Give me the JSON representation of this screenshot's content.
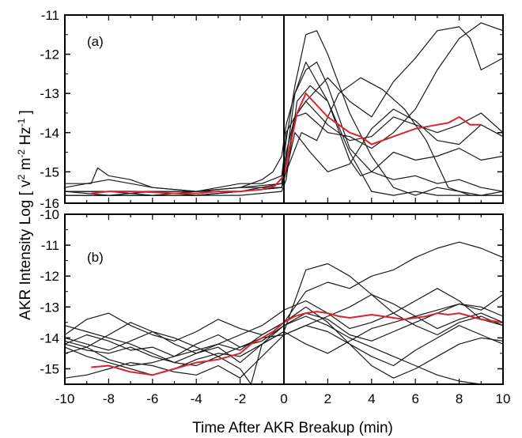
{
  "chart_data": {
    "type": "line",
    "shared_ylabel": "AKR Intensity  Log [ v",
    "ylabel_parts": {
      "prefix": "AKR Intensity  Log [ v",
      "sup1": "2",
      "mid1": " m",
      "sup2": "-2",
      "mid2": " Hz",
      "sup3": "-1",
      "suffix": " ]"
    },
    "xlabel": "Time After AKR Breakup (min)",
    "xlim": [
      -10,
      10
    ],
    "xticks": [
      -10,
      -8,
      -6,
      -4,
      -2,
      0,
      2,
      4,
      6,
      8,
      10
    ],
    "xtick_labels": [
      "-10",
      "-8",
      "-6",
      "-4",
      "-2",
      "0",
      "2",
      "4",
      "6",
      "8",
      "10"
    ],
    "colors": {
      "events": "#1a1a1a",
      "average": "#d9232e"
    },
    "panels": [
      {
        "label": "(a)",
        "ylim": [
          -15.8,
          -11
        ],
        "yticks": [
          -11,
          -12,
          -13,
          -14,
          -15
        ],
        "ytick_labels": [
          "-11",
          "-12",
          "-13",
          "-14",
          "-15"
        ],
        "lower_tick_label": "-16",
        "events": [
          {
            "x": [
              -10,
              -8,
              -6,
              -4,
              -2,
              -1,
              -0.5,
              -0.1,
              0.1,
              0.5,
              1,
              1.5,
              2,
              2.5,
              3,
              4,
              5,
              6,
              7,
              8,
              9,
              10
            ],
            "y": [
              -15.5,
              -15.5,
              -15.5,
              -15.5,
              -15.4,
              -15.2,
              -15,
              -14.6,
              -13.8,
              -13,
              -12.4,
              -12.2,
              -12.8,
              -13.6,
              -14.4,
              -15,
              -15.2,
              -15.1,
              -15.3,
              -15.2,
              -15.4,
              -15.5
            ]
          },
          {
            "x": [
              -10,
              -8,
              -6,
              -4,
              -2,
              -1,
              -0.1,
              0.1,
              0.5,
              1,
              1.5,
              2,
              3,
              4,
              5,
              6,
              7,
              8,
              9,
              10
            ],
            "y": [
              -15.4,
              -15.2,
              -15.4,
              -15.5,
              -15.3,
              -15.3,
              -15.1,
              -14.2,
              -12.8,
              -11.5,
              -11.4,
              -12,
              -13.5,
              -14.6,
              -15.4,
              -15.6,
              -15.4,
              -15.5,
              -15.6,
              -15.5
            ]
          },
          {
            "x": [
              -10,
              -8,
              -6,
              -4,
              -2,
              -0.1,
              0.1,
              0.5,
              1,
              2,
              3,
              4,
              5,
              6,
              7,
              8,
              9,
              10
            ],
            "y": [
              -15.6,
              -15.6,
              -15.6,
              -15.6,
              -15.5,
              -15.3,
              -14.5,
              -13.6,
              -13.2,
              -13.8,
              -14.2,
              -14.1,
              -13.6,
              -13.8,
              -14,
              -13.8,
              -13.5,
              -14
            ]
          },
          {
            "x": [
              -10,
              -8,
              -6,
              -4,
              -2,
              -0.1,
              0.1,
              0.5,
              1,
              2,
              3,
              4,
              5,
              6,
              7,
              8,
              8.5,
              9,
              10
            ],
            "y": [
              -15.5,
              -15.5,
              -15.6,
              -15.6,
              -15.5,
              -15.4,
              -14.8,
              -13.6,
              -13.2,
              -12.6,
              -13.2,
              -13.6,
              -12.7,
              -12.1,
              -11.4,
              -11.3,
              -11.6,
              -12.4,
              -12.1
            ]
          },
          {
            "x": [
              -10,
              -8,
              -6,
              -4,
              -2,
              -0.1,
              0.1,
              0.6,
              1.2,
              2,
              3,
              4,
              5,
              6,
              7,
              8,
              9,
              10
            ],
            "y": [
              -15.6,
              -15.6,
              -15.5,
              -15.6,
              -15.6,
              -15.5,
              -15.2,
              -13.2,
              -12.8,
              -13.2,
              -14.5,
              -15.5,
              -15.6,
              -15.5,
              -15.6,
              -15.6,
              -15.6,
              -15.6
            ]
          },
          {
            "x": [
              -10,
              -8,
              -6,
              -4,
              -2,
              -0.1,
              0.1,
              0.8,
              1.5,
              2.5,
              3.5,
              4.5,
              5.5,
              6.5,
              7.5,
              8.5,
              9.5,
              10
            ],
            "y": [
              -15.5,
              -15.6,
              -15.6,
              -15.5,
              -15.5,
              -15.4,
              -15,
              -14,
              -14.2,
              -13,
              -12.6,
              -12.9,
              -13.4,
              -14.2,
              -15.4,
              -15.6,
              -15.6,
              -15.6
            ]
          },
          {
            "x": [
              -10,
              -8,
              -6,
              -4,
              -2,
              -0.1,
              0.1,
              0.5,
              1,
              2,
              3,
              4,
              5,
              6,
              7,
              8,
              9,
              10
            ],
            "y": [
              -15.5,
              -15.5,
              -15.5,
              -15.5,
              -15.4,
              -15.3,
              -14,
              -13.6,
              -13.5,
              -14,
              -14.1,
              -14.4,
              -14,
              -13.4,
              -12.4,
              -11.6,
              -11.2,
              -11.4
            ]
          },
          {
            "x": [
              -10,
              -8.8,
              -8.5,
              -8,
              -7,
              -6,
              -4,
              -2,
              -1,
              -0.1,
              0.1,
              0.5,
              1,
              2,
              3,
              3.5,
              4,
              5,
              6,
              7,
              8,
              9,
              10
            ],
            "y": [
              -15.3,
              -15.3,
              -14.9,
              -15.1,
              -15.2,
              -15.4,
              -15.5,
              -15.4,
              -15.4,
              -15.4,
              -14.7,
              -13,
              -12.2,
              -13.2,
              -14.7,
              -15.1,
              -15,
              -14.5,
              -14.7,
              -14.6,
              -14.4,
              -14.7,
              -14.6
            ]
          },
          {
            "x": [
              -10,
              -8,
              -6,
              -4,
              -2,
              -0.1,
              0.1,
              0.5,
              1.2,
              2,
              3,
              4,
              5,
              6,
              7,
              8,
              9,
              10
            ],
            "y": [
              -15.6,
              -15.6,
              -15.6,
              -15.6,
              -15.5,
              -15.4,
              -15,
              -14,
              -14.5,
              -15,
              -14.8,
              -13.9,
              -13.4,
              -13.7,
              -14.2,
              -14.3,
              -13.8,
              -14.1
            ]
          }
        ],
        "average": {
          "x": [
            -8.8,
            -8,
            -7,
            -6,
            -5,
            -4,
            -3,
            -2,
            -1,
            -0.4,
            0,
            0.3,
            0.6,
            1,
            1.5,
            2,
            2.5,
            3,
            3.5,
            4,
            4.5,
            5,
            5.5,
            6,
            6.5,
            7,
            7.5,
            8,
            8.5,
            9
          ],
          "y": [
            -15.55,
            -15.5,
            -15.5,
            -15.52,
            -15.55,
            -15.55,
            -15.5,
            -15.5,
            -15.45,
            -15.35,
            -15.1,
            -14.3,
            -13.5,
            -13,
            -13.3,
            -13.6,
            -13.8,
            -14,
            -14.1,
            -14.3,
            -14.2,
            -14.1,
            -14,
            -13.9,
            -13.85,
            -13.8,
            -13.75,
            -13.6,
            -13.8,
            -13.8
          ]
        }
      },
      {
        "label": "(b)",
        "ylim": [
          -15.5,
          -10
        ],
        "yticks": [
          -10,
          -11,
          -12,
          -13,
          -14,
          -15
        ],
        "ytick_labels": [
          "-10",
          "-11",
          "-12",
          "-13",
          "-14",
          "-15"
        ],
        "events": [
          {
            "x": [
              -10,
              -9,
              -8,
              -7,
              -6,
              -5,
              -4,
              -3,
              -2,
              -1,
              0,
              1,
              2,
              3,
              4,
              5,
              6,
              7,
              8,
              9,
              10
            ],
            "y": [
              -14.2,
              -13.9,
              -14.1,
              -14.4,
              -14.3,
              -14.6,
              -14.4,
              -14.2,
              -13.9,
              -13.6,
              -13.1,
              -12.8,
              -13.2,
              -13.7,
              -13.5,
              -13.2,
              -13.6,
              -13.9,
              -13.5,
              -13.3,
              -13.6
            ]
          },
          {
            "x": [
              -10,
              -9,
              -8,
              -7,
              -6,
              -5,
              -4,
              -3,
              -2,
              -1,
              0,
              1,
              2,
              3,
              4,
              5,
              6,
              7,
              8,
              9,
              10
            ],
            "y": [
              -13.9,
              -13.4,
              -13.2,
              -13.6,
              -13.9,
              -14.1,
              -13.8,
              -13.4,
              -13.7,
              -13.9,
              -13.5,
              -12.5,
              -12.2,
              -12.4,
              -12,
              -11.8,
              -11.4,
              -11.1,
              -10.9,
              -11.1,
              -11.4
            ]
          },
          {
            "x": [
              -10,
              -9,
              -8,
              -7,
              -6,
              -5,
              -4,
              -3,
              -2,
              -1,
              0,
              1,
              2,
              3,
              4,
              5,
              6,
              7,
              8,
              9,
              10
            ],
            "y": [
              -14.5,
              -14.3,
              -13.9,
              -13.5,
              -13.8,
              -14.2,
              -14.5,
              -14.3,
              -14.8,
              -14.2,
              -13.8,
              -11.8,
              -11.6,
              -12,
              -12.6,
              -13.2,
              -12.8,
              -12.4,
              -12.8,
              -13.4,
              -13.6
            ]
          },
          {
            "x": [
              -10,
              -9,
              -8,
              -7,
              -6,
              -5,
              -4,
              -3,
              -2,
              -1,
              0,
              1,
              2,
              3,
              4,
              5,
              6,
              7,
              8,
              9,
              10
            ],
            "y": [
              -14.1,
              -14.3,
              -14.7,
              -14.9,
              -14.8,
              -14.6,
              -14.2,
              -13.9,
              -14.3,
              -14.1,
              -13.6,
              -13.2,
              -13.4,
              -13.9,
              -14.1,
              -13.8,
              -13.5,
              -13.2,
              -12.9,
              -13.1,
              -12.6
            ]
          },
          {
            "x": [
              -10,
              -9,
              -8,
              -7,
              -6,
              -5,
              -4,
              -3,
              -2,
              -1,
              0,
              1,
              2,
              3,
              4,
              5,
              6,
              7,
              8,
              9,
              10
            ],
            "y": [
              -13.6,
              -13.8,
              -14,
              -14.2,
              -14.5,
              -14.8,
              -14.9,
              -14.6,
              -14.3,
              -14,
              -13.9,
              -13.6,
              -13.8,
              -14.2,
              -14.6,
              -14.9,
              -14.4,
              -14,
              -13.6,
              -13.9,
              -14.2
            ]
          },
          {
            "x": [
              -10,
              -9,
              -8,
              -7,
              -6,
              -5,
              -4,
              -3,
              -2,
              -1,
              0,
              1,
              2,
              3,
              4,
              5,
              6,
              7,
              8,
              9,
              10
            ],
            "y": [
              -15.3,
              -15.2,
              -15,
              -14.8,
              -14.9,
              -15.1,
              -15.2,
              -14.9,
              -15.3,
              -14.6,
              -13.9,
              -13.6,
              -13.3,
              -13,
              -12.6,
              -12.9,
              -13.3,
              -13.7,
              -13.4,
              -13.2,
              -13.5
            ]
          },
          {
            "x": [
              -10,
              -9,
              -8,
              -7,
              -6,
              -5,
              -4,
              -3,
              -2,
              -1.5,
              -1,
              0,
              1,
              2,
              3,
              4,
              5,
              6,
              7,
              8,
              9,
              10
            ],
            "y": [
              -14,
              -14.2,
              -14.4,
              -14.1,
              -13.8,
              -14,
              -14.3,
              -14.6,
              -15,
              -15.5,
              -14.2,
              -13.6,
              -13.3,
              -13.6,
              -14,
              -14.3,
              -14.6,
              -14.9,
              -15.2,
              -15.4,
              -15.5,
              -15.5
            ]
          },
          {
            "x": [
              -10,
              -9,
              -8,
              -7,
              -6,
              -5,
              -4,
              -3,
              -2,
              -1,
              0,
              1,
              2,
              3,
              4,
              5,
              6,
              7,
              8,
              9,
              10
            ],
            "y": [
              -14.3,
              -14.6,
              -14.8,
              -15,
              -15.2,
              -15,
              -14.7,
              -14.5,
              -14.6,
              -14.2,
              -13.8,
              -14.2,
              -14.5,
              -14.1,
              -13.7,
              -13.5,
              -13.3,
              -13.1,
              -12.9,
              -13,
              -13.3
            ]
          },
          {
            "x": [
              -10,
              -9,
              -8,
              -7,
              -6,
              -5,
              -4,
              -3,
              -2,
              -1,
              0,
              1,
              2,
              3,
              4,
              5,
              6,
              7,
              8,
              9,
              10
            ],
            "y": [
              -14.2,
              -14.4,
              -14.5,
              -14.3,
              -14.6,
              -14.8,
              -14.5,
              -14.2,
              -14.4,
              -13.9,
              -13.5,
              -13,
              -13.5,
              -14.2,
              -14.9,
              -15.3,
              -15,
              -14.6,
              -14.2,
              -14,
              -14.1
            ]
          }
        ],
        "average": {
          "x": [
            -8.8,
            -8,
            -7.5,
            -7,
            -6.5,
            -6,
            -5.5,
            -5,
            -4.5,
            -4,
            -3.5,
            -3,
            -2.5,
            -2,
            -1.5,
            -1,
            -0.5,
            0,
            0.5,
            1,
            1.5,
            2,
            2.5,
            3,
            3.5,
            4,
            4.5,
            5,
            5.5,
            6,
            6.5,
            7,
            7.5,
            8,
            8.5,
            9,
            9.5,
            10
          ],
          "y": [
            -14.95,
            -14.9,
            -15,
            -15.1,
            -15.15,
            -15.2,
            -15.1,
            -15,
            -14.9,
            -14.8,
            -14.75,
            -14.7,
            -14.6,
            -14.5,
            -14.2,
            -14,
            -13.8,
            -13.5,
            -13.3,
            -13.2,
            -13.15,
            -13.2,
            -13.3,
            -13.35,
            -13.3,
            -13.25,
            -13.3,
            -13.35,
            -13.4,
            -13.35,
            -13.3,
            -13.2,
            -13.25,
            -13.2,
            -13.3,
            -13.4,
            -13.45,
            -13.5
          ]
        }
      }
    ]
  }
}
